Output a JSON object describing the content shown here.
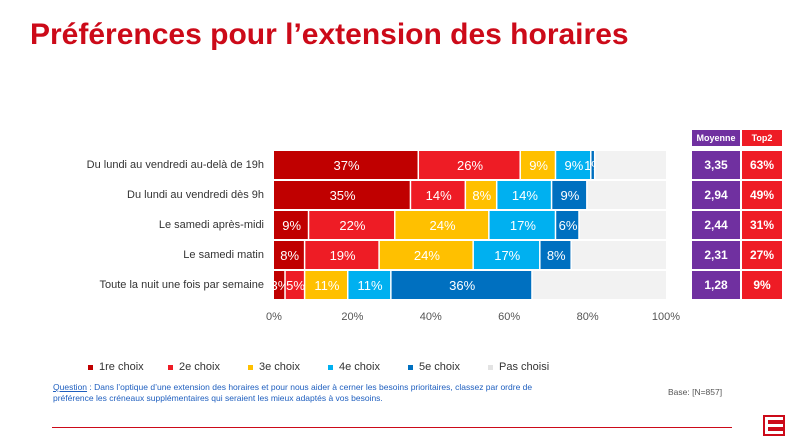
{
  "title": "Préférences pour l’extension des horaires",
  "colors": {
    "title": "#cc0a19",
    "series": [
      "#c00000",
      "#ee1c25",
      "#ffc000",
      "#00b0f0",
      "#0070c0",
      "#f2f2f2"
    ],
    "table_mean": "#7030a0",
    "table_top2": "#ee1c25"
  },
  "chart_data": {
    "type": "bar",
    "orientation": "horizontal",
    "stacked": true,
    "categories": [
      "Du lundi au vendredi au-delà de 19h",
      "Du lundi au vendredi dès 9h",
      "Le samedi après-midi",
      "Le samedi matin",
      "Toute la nuit une fois par semaine"
    ],
    "series": [
      {
        "name": "1re choix",
        "values": [
          37,
          35,
          9,
          8,
          3
        ]
      },
      {
        "name": "2e choix",
        "values": [
          26,
          14,
          22,
          19,
          5
        ]
      },
      {
        "name": "3e choix",
        "values": [
          9,
          8,
          24,
          24,
          11
        ]
      },
      {
        "name": "4e choix",
        "values": [
          9,
          14,
          17,
          17,
          11
        ]
      },
      {
        "name": "5e choix",
        "values": [
          1,
          9,
          6,
          8,
          36
        ]
      },
      {
        "name": "Pas choisi",
        "values": [
          18,
          20,
          22,
          24,
          34
        ]
      }
    ],
    "data_labels": [
      [
        "37%",
        "26%",
        "9%",
        "9%",
        "1%",
        ""
      ],
      [
        "35%",
        "14%",
        "8%",
        "14%",
        "9%",
        ""
      ],
      [
        "9%",
        "22%",
        "24%",
        "17%",
        "6%",
        ""
      ],
      [
        "8%",
        "19%",
        "24%",
        "17%",
        "8%",
        ""
      ],
      [
        "3%",
        "5%",
        "11%",
        "11%",
        "36%",
        ""
      ]
    ],
    "xlim": [
      0,
      100
    ],
    "xticks": [
      "0%",
      "20%",
      "40%",
      "60%",
      "80%",
      "100%"
    ],
    "legend_position": "bottom",
    "grid": false
  },
  "table": {
    "headers": [
      "Moyenne",
      "Top2"
    ],
    "rows": [
      [
        "3,35",
        "63%"
      ],
      [
        "2,94",
        "49%"
      ],
      [
        "2,44",
        "31%"
      ],
      [
        "2,31",
        "27%"
      ],
      [
        "1,28",
        "9%"
      ]
    ]
  },
  "question": {
    "link": "Question",
    "text": " : Dans l’optique d’une extension des horaires et pour nous aider à cerner les besoins prioritaires, classez par ordre de préférence les créneaux supplémentaires qui seraient les mieux adaptés à vos besoins."
  },
  "base": "Base: [N=857]"
}
